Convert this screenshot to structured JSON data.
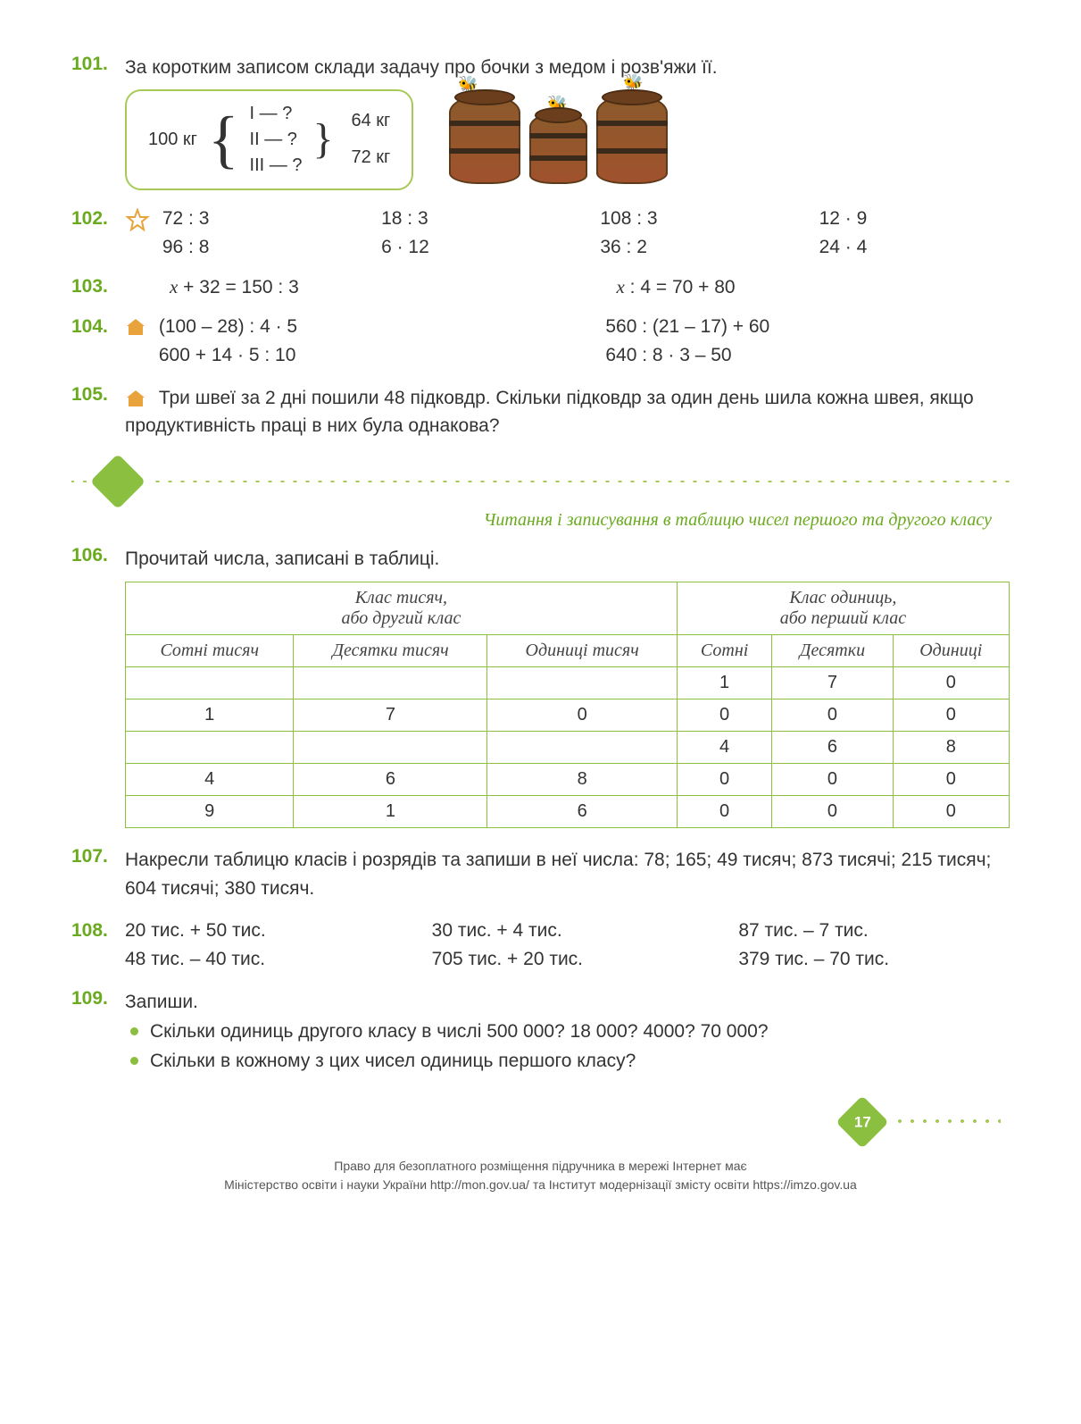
{
  "ex101": {
    "num": "101.",
    "text": "За коротким записом склади задачу про бочки з медом і розв'яжи її.",
    "total": "100 кг",
    "lines": [
      "I — ?",
      "II — ?",
      "III — ?"
    ],
    "right": [
      "64 кг",
      "72 кг"
    ]
  },
  "ex102": {
    "num": "102.",
    "cells": [
      "72 : 3",
      "18 : 3",
      "108 : 3",
      "12 · 9",
      "96 : 8",
      "6 · 12",
      "36 : 2",
      "24 · 4"
    ]
  },
  "ex103": {
    "num": "103.",
    "cells": [
      "x + 32 = 150 : 3",
      "x : 4 = 70 + 80"
    ]
  },
  "ex104": {
    "num": "104.",
    "cells": [
      "(100 – 28) : 4 · 5",
      "560 : (21 – 17) + 60",
      "600 + 14 · 5 : 10",
      "640 : 8 · 3 – 50"
    ]
  },
  "ex105": {
    "num": "105.",
    "text": "Три швеї за 2 дні пошили 48 підковдр. Скільки підковдр за один день шила кожна швея, якщо продуктивність праці в них була однакова?"
  },
  "section_title": "Читання і записування в таблицю чисел першого та другого класу",
  "ex106": {
    "num": "106.",
    "text": "Прочитай числа, записані в таблиці.",
    "header_groups": [
      "Клас тисяч,\nабо другий клас",
      "Клас одиниць,\nабо перший клас"
    ],
    "headers": [
      "Сотні тисяч",
      "Десятки тисяч",
      "Одиниці тисяч",
      "Сотні",
      "Десятки",
      "Одиниці"
    ],
    "rows": [
      [
        "",
        "",
        "",
        "1",
        "7",
        "0"
      ],
      [
        "1",
        "7",
        "0",
        "0",
        "0",
        "0"
      ],
      [
        "",
        "",
        "",
        "4",
        "6",
        "8"
      ],
      [
        "4",
        "6",
        "8",
        "0",
        "0",
        "0"
      ],
      [
        "9",
        "1",
        "6",
        "0",
        "0",
        "0"
      ]
    ]
  },
  "ex107": {
    "num": "107.",
    "text": "Накресли таблицю класів і розрядів та запиши в неї числа: 78; 165; 49 тисяч;  873 тисячі;  215 тисяч;  604 тисячі;  380 тисяч."
  },
  "ex108": {
    "num": "108.",
    "cells": [
      "20 тис. + 50 тис.",
      "30 тис. + 4 тис.",
      "87 тис. – 7 тис.",
      "48 тис. – 40 тис.",
      "705 тис. + 20 тис.",
      "379 тис. – 70 тис."
    ]
  },
  "ex109": {
    "num": "109.",
    "text": "Запиши.",
    "bullets": [
      "Скільки одиниць другого класу в числі 500 000? 18 000? 4000? 70 000?",
      "Скільки в кожному з цих чисел одиниць першого класу?"
    ]
  },
  "page_number": "17",
  "footer": {
    "line1": "Право для безоплатного розміщення підручника в мережі Інтернет має",
    "line2": "Міністерство освіти і науки України http://mon.gov.ua/ та Інститут модернізації змісту освіти https://imzo.gov.ua"
  },
  "colors": {
    "accent": "#6aaa1f",
    "border": "#8bbf3f",
    "light": "#a7c957"
  }
}
